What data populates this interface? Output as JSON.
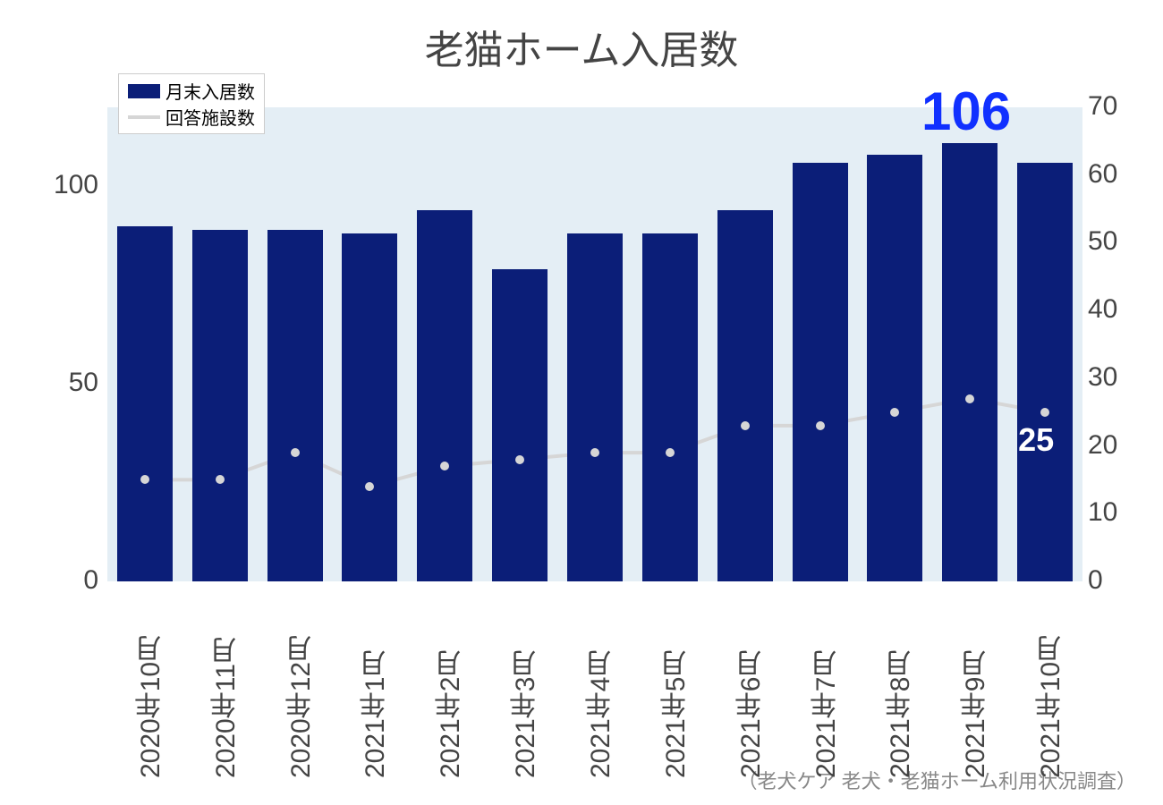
{
  "title": "老猫ホーム入居数",
  "source_note": "（老犬ケア 老犬・老猫ホーム利用状況調査）",
  "legend": {
    "bar_label": "月末入居数",
    "line_label": "回答施設数"
  },
  "chart": {
    "type": "bar+line",
    "plot_background": "#e4eef5",
    "page_background": "#ffffff",
    "bar_color": "#0b1e78",
    "line_color": "#d6d6d6",
    "line_width": 4,
    "text_color": "#444444",
    "callout_big_color": "#1030ff",
    "callout_small_color": "#ffffff",
    "left_axis": {
      "min": 0,
      "max": 120,
      "ticks": [
        0,
        50,
        100
      ],
      "fontsize": 30
    },
    "right_axis": {
      "min": 0,
      "max": 70,
      "ticks": [
        0,
        10,
        20,
        30,
        40,
        50,
        60,
        70
      ],
      "fontsize": 30
    },
    "categories": [
      "2020年10月",
      "2020年11月",
      "2020年12月",
      "2021年1月",
      "2021年2月",
      "2021年3月",
      "2021年4月",
      "2021年5月",
      "2021年6月",
      "2021年7月",
      "2021年8月",
      "2021年9月",
      "2021年10月"
    ],
    "bar_values": [
      90,
      89,
      89,
      88,
      94,
      79,
      88,
      88,
      94,
      106,
      108,
      111,
      106
    ],
    "line_values": [
      15,
      15,
      19,
      14,
      17,
      18,
      19,
      19,
      23,
      23,
      25,
      27,
      25
    ],
    "bar_width_ratio": 0.74,
    "callouts": {
      "big": {
        "text": "106",
        "fontsize": 60
      },
      "small": {
        "text": "25",
        "fontsize": 36
      }
    },
    "title_fontsize": 44
  }
}
